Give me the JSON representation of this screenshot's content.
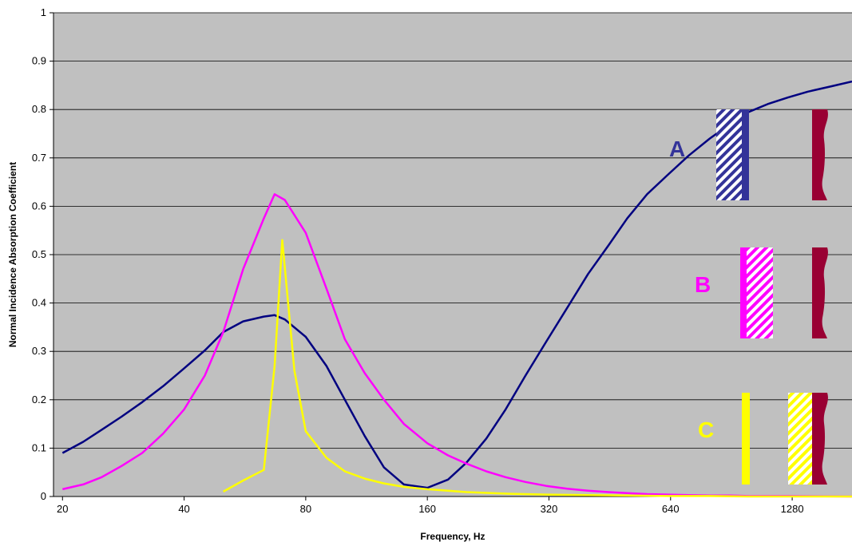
{
  "chart_data": {
    "type": "line",
    "title": "",
    "xlabel": "Frequency, Hz",
    "ylabel": "Normal Incidence Absorption Coefficient",
    "x_scale": "log2",
    "xlim": [
      19,
      1800
    ],
    "ylim": [
      0,
      1
    ],
    "grid": "horizontal",
    "background": "#c0c0c0",
    "x_ticks": [
      "20",
      "40",
      "80",
      "160",
      "320",
      "640",
      "1280"
    ],
    "y_ticks": [
      "0",
      "0.1",
      "0.2",
      "0.3",
      "0.4",
      "0.5",
      "0.6",
      "0.7",
      "0.8",
      "0.9",
      "1"
    ],
    "series": [
      {
        "color": "#000080",
        "points": [
          [
            20,
            0.09
          ],
          [
            22.5,
            0.113
          ],
          [
            25,
            0.138
          ],
          [
            28,
            0.165
          ],
          [
            31.5,
            0.195
          ],
          [
            35.5,
            0.228
          ],
          [
            40,
            0.265
          ],
          [
            45,
            0.302
          ],
          [
            50,
            0.34
          ],
          [
            56,
            0.362
          ],
          [
            63,
            0.372
          ],
          [
            67,
            0.375
          ],
          [
            71,
            0.366
          ],
          [
            80,
            0.33
          ],
          [
            90,
            0.27
          ],
          [
            100,
            0.2
          ],
          [
            112,
            0.125
          ],
          [
            125,
            0.06
          ],
          [
            140,
            0.025
          ],
          [
            160,
            0.018
          ],
          [
            180,
            0.035
          ],
          [
            200,
            0.07
          ],
          [
            224,
            0.12
          ],
          [
            250,
            0.18
          ],
          [
            280,
            0.25
          ],
          [
            315,
            0.32
          ],
          [
            355,
            0.39
          ],
          [
            400,
            0.46
          ],
          [
            450,
            0.52
          ],
          [
            500,
            0.575
          ],
          [
            560,
            0.625
          ],
          [
            630,
            0.665
          ],
          [
            710,
            0.705
          ],
          [
            800,
            0.74
          ],
          [
            900,
            0.77
          ],
          [
            1000,
            0.795
          ],
          [
            1120,
            0.812
          ],
          [
            1250,
            0.825
          ],
          [
            1400,
            0.837
          ],
          [
            1600,
            0.848
          ],
          [
            1800,
            0.858
          ]
        ]
      },
      {
        "color": "#ff00ff",
        "points": [
          [
            20,
            0.015
          ],
          [
            22.5,
            0.025
          ],
          [
            25,
            0.04
          ],
          [
            28,
            0.063
          ],
          [
            31.5,
            0.09
          ],
          [
            35.5,
            0.13
          ],
          [
            40,
            0.18
          ],
          [
            45,
            0.25
          ],
          [
            50,
            0.34
          ],
          [
            56,
            0.47
          ],
          [
            63,
            0.575
          ],
          [
            67,
            0.625
          ],
          [
            71,
            0.613
          ],
          [
            80,
            0.545
          ],
          [
            90,
            0.43
          ],
          [
            100,
            0.325
          ],
          [
            112,
            0.255
          ],
          [
            125,
            0.2
          ],
          [
            140,
            0.15
          ],
          [
            160,
            0.11
          ],
          [
            180,
            0.085
          ],
          [
            200,
            0.068
          ],
          [
            224,
            0.052
          ],
          [
            250,
            0.04
          ],
          [
            280,
            0.03
          ],
          [
            315,
            0.022
          ],
          [
            355,
            0.016
          ],
          [
            400,
            0.012
          ],
          [
            450,
            0.009
          ],
          [
            500,
            0.007
          ],
          [
            560,
            0.005
          ],
          [
            630,
            0.004
          ],
          [
            710,
            0.003
          ],
          [
            800,
            0.002
          ],
          [
            900,
            0.002
          ],
          [
            1000,
            0.001
          ],
          [
            1250,
            0.001
          ],
          [
            1800,
            0.0
          ]
        ]
      },
      {
        "color": "#ffff00",
        "points": [
          [
            50,
            0.01
          ],
          [
            56,
            0.033
          ],
          [
            63,
            0.055
          ],
          [
            67,
            0.27
          ],
          [
            70,
            0.53
          ],
          [
            75,
            0.26
          ],
          [
            80,
            0.135
          ],
          [
            90,
            0.08
          ],
          [
            100,
            0.052
          ],
          [
            112,
            0.037
          ],
          [
            125,
            0.027
          ],
          [
            140,
            0.02
          ],
          [
            160,
            0.015
          ],
          [
            180,
            0.012
          ],
          [
            200,
            0.009
          ],
          [
            250,
            0.006
          ],
          [
            315,
            0.004
          ],
          [
            400,
            0.003
          ],
          [
            500,
            0.002
          ],
          [
            630,
            0.001
          ],
          [
            800,
            0.001
          ],
          [
            1000,
            0.0
          ],
          [
            1800,
            0.0
          ]
        ]
      }
    ],
    "annotations": [
      {
        "label": "A",
        "color": "#333399"
      },
      {
        "label": "B",
        "color": "#ff00ff"
      },
      {
        "label": "C",
        "color": "#ffff00"
      }
    ]
  }
}
